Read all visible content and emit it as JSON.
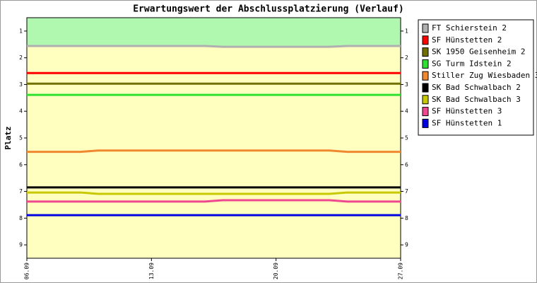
{
  "chart_data": {
    "type": "line",
    "title": "Erwartungswert der Abschlussplatzierung (Verlauf)",
    "y_label": "Platz",
    "x": [
      "06.09",
      null,
      null,
      null,
      null,
      null,
      null,
      "13.09",
      null,
      null,
      null,
      null,
      null,
      null,
      "20.09",
      null,
      null,
      null,
      null,
      null,
      null,
      "27.09"
    ],
    "ylim": [
      0.5,
      9.5
    ],
    "y_inverted": true,
    "yticks": [
      1,
      2,
      3,
      4,
      5,
      6,
      7,
      8,
      9
    ],
    "bands": [
      {
        "color": "#b0f8b0",
        "range": [
          0.5,
          1.56
        ]
      },
      {
        "color": "#ffffc0",
        "range": [
          1.56,
          9.5
        ]
      }
    ],
    "series": [
      {
        "name": "FT Schierstein 2",
        "color": "#b0b0b0",
        "values": [
          1.56,
          1.56,
          1.56,
          1.56,
          1.56,
          1.56,
          1.56,
          1.56,
          1.56,
          1.56,
          1.56,
          1.59,
          1.59,
          1.59,
          1.59,
          1.59,
          1.59,
          1.59,
          1.56,
          1.56,
          1.56,
          1.56
        ]
      },
      {
        "name": "SF Hünstetten 2",
        "color": "#ff0000",
        "values": [
          2.57,
          2.57,
          2.57,
          2.57,
          2.57,
          2.57,
          2.57,
          2.57,
          2.57,
          2.57,
          2.57,
          2.57,
          2.57,
          2.57,
          2.57,
          2.57,
          2.57,
          2.57,
          2.57,
          2.57,
          2.57,
          2.57
        ]
      },
      {
        "name": "SK 1950 Geisenheim 2",
        "color": "#707000",
        "values": [
          2.97,
          2.97,
          2.97,
          2.97,
          2.97,
          2.97,
          2.97,
          2.97,
          2.97,
          2.97,
          2.97,
          2.97,
          2.97,
          2.97,
          2.97,
          2.97,
          2.97,
          2.97,
          2.97,
          2.97,
          2.97,
          2.97
        ]
      },
      {
        "name": "SG Turm Idstein 2",
        "color": "#30e030",
        "values": [
          3.39,
          3.39,
          3.39,
          3.39,
          3.39,
          3.39,
          3.39,
          3.39,
          3.39,
          3.39,
          3.39,
          3.39,
          3.39,
          3.39,
          3.39,
          3.39,
          3.39,
          3.39,
          3.39,
          3.39,
          3.39,
          3.39
        ]
      },
      {
        "name": "Stiller Zug Wiesbaden 3",
        "color": "#f08830",
        "values": [
          5.52,
          5.52,
          5.52,
          5.52,
          5.47,
          5.47,
          5.47,
          5.47,
          5.47,
          5.47,
          5.47,
          5.47,
          5.47,
          5.47,
          5.47,
          5.47,
          5.47,
          5.47,
          5.52,
          5.52,
          5.52,
          5.52
        ]
      },
      {
        "name": "SK Bad Schwalbach 2",
        "color": "#000000",
        "values": [
          6.85,
          6.85,
          6.85,
          6.85,
          6.85,
          6.85,
          6.85,
          6.85,
          6.85,
          6.85,
          6.85,
          6.85,
          6.85,
          6.85,
          6.85,
          6.85,
          6.85,
          6.85,
          6.85,
          6.85,
          6.85,
          6.85
        ]
      },
      {
        "name": "SK Bad Schwalbach 3",
        "color": "#c8c800",
        "values": [
          7.04,
          7.04,
          7.04,
          7.04,
          7.09,
          7.09,
          7.09,
          7.09,
          7.09,
          7.09,
          7.09,
          7.09,
          7.09,
          7.09,
          7.09,
          7.09,
          7.09,
          7.09,
          7.04,
          7.04,
          7.04,
          7.04
        ]
      },
      {
        "name": "SF Hünstetten 3",
        "color": "#f04890",
        "values": [
          7.38,
          7.38,
          7.38,
          7.38,
          7.38,
          7.38,
          7.38,
          7.38,
          7.38,
          7.38,
          7.38,
          7.33,
          7.33,
          7.33,
          7.33,
          7.33,
          7.33,
          7.33,
          7.38,
          7.38,
          7.38,
          7.38
        ]
      },
      {
        "name": "SF Hünstetten 1",
        "color": "#0000e0",
        "values": [
          7.89,
          7.89,
          7.89,
          7.89,
          7.89,
          7.89,
          7.89,
          7.89,
          7.89,
          7.89,
          7.89,
          7.89,
          7.89,
          7.89,
          7.89,
          7.89,
          7.89,
          7.89,
          7.89,
          7.89,
          7.89,
          7.89
        ]
      }
    ]
  }
}
